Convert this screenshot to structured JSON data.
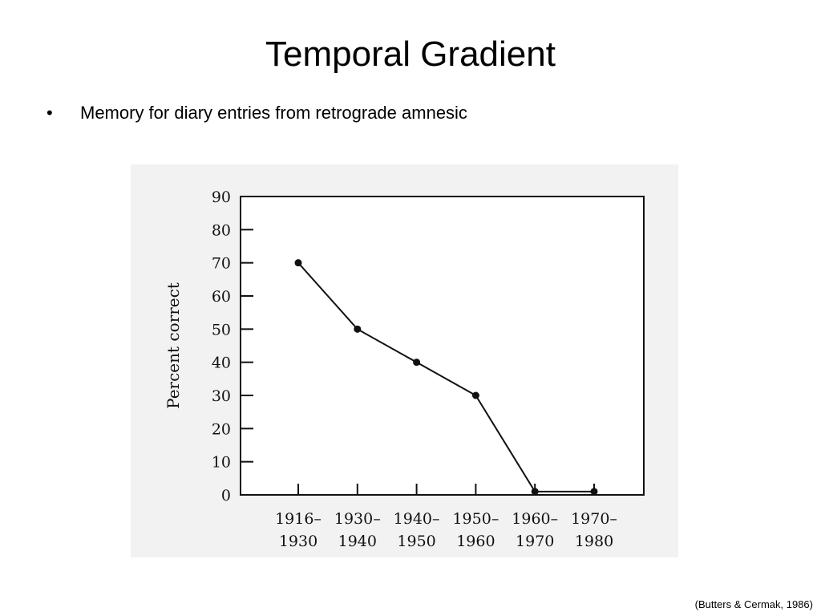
{
  "slide": {
    "title": "Temporal Gradient",
    "bullet_char": "•",
    "bullet_text": "Memory for diary entries from retrograde amnesic",
    "citation": "(Butters & Cermak, 1986)"
  },
  "colors": {
    "panel_bg": "#f2f2f2",
    "ink": "#111111"
  },
  "chart_data": {
    "type": "line",
    "title": "",
    "xlabel": "",
    "ylabel": "Percent correct",
    "categories": [
      [
        "1916–",
        "1930"
      ],
      [
        "1930–",
        "1940"
      ],
      [
        "1940–",
        "1950"
      ],
      [
        "1950–",
        "1960"
      ],
      [
        "1960–",
        "1970"
      ],
      [
        "1970–",
        "1980"
      ]
    ],
    "values": [
      70,
      50,
      40,
      30,
      1,
      1
    ],
    "ylim": [
      0,
      90
    ],
    "yticks": [
      0,
      10,
      20,
      30,
      40,
      50,
      60,
      70,
      80,
      90
    ],
    "grid": false,
    "legend": "none"
  }
}
